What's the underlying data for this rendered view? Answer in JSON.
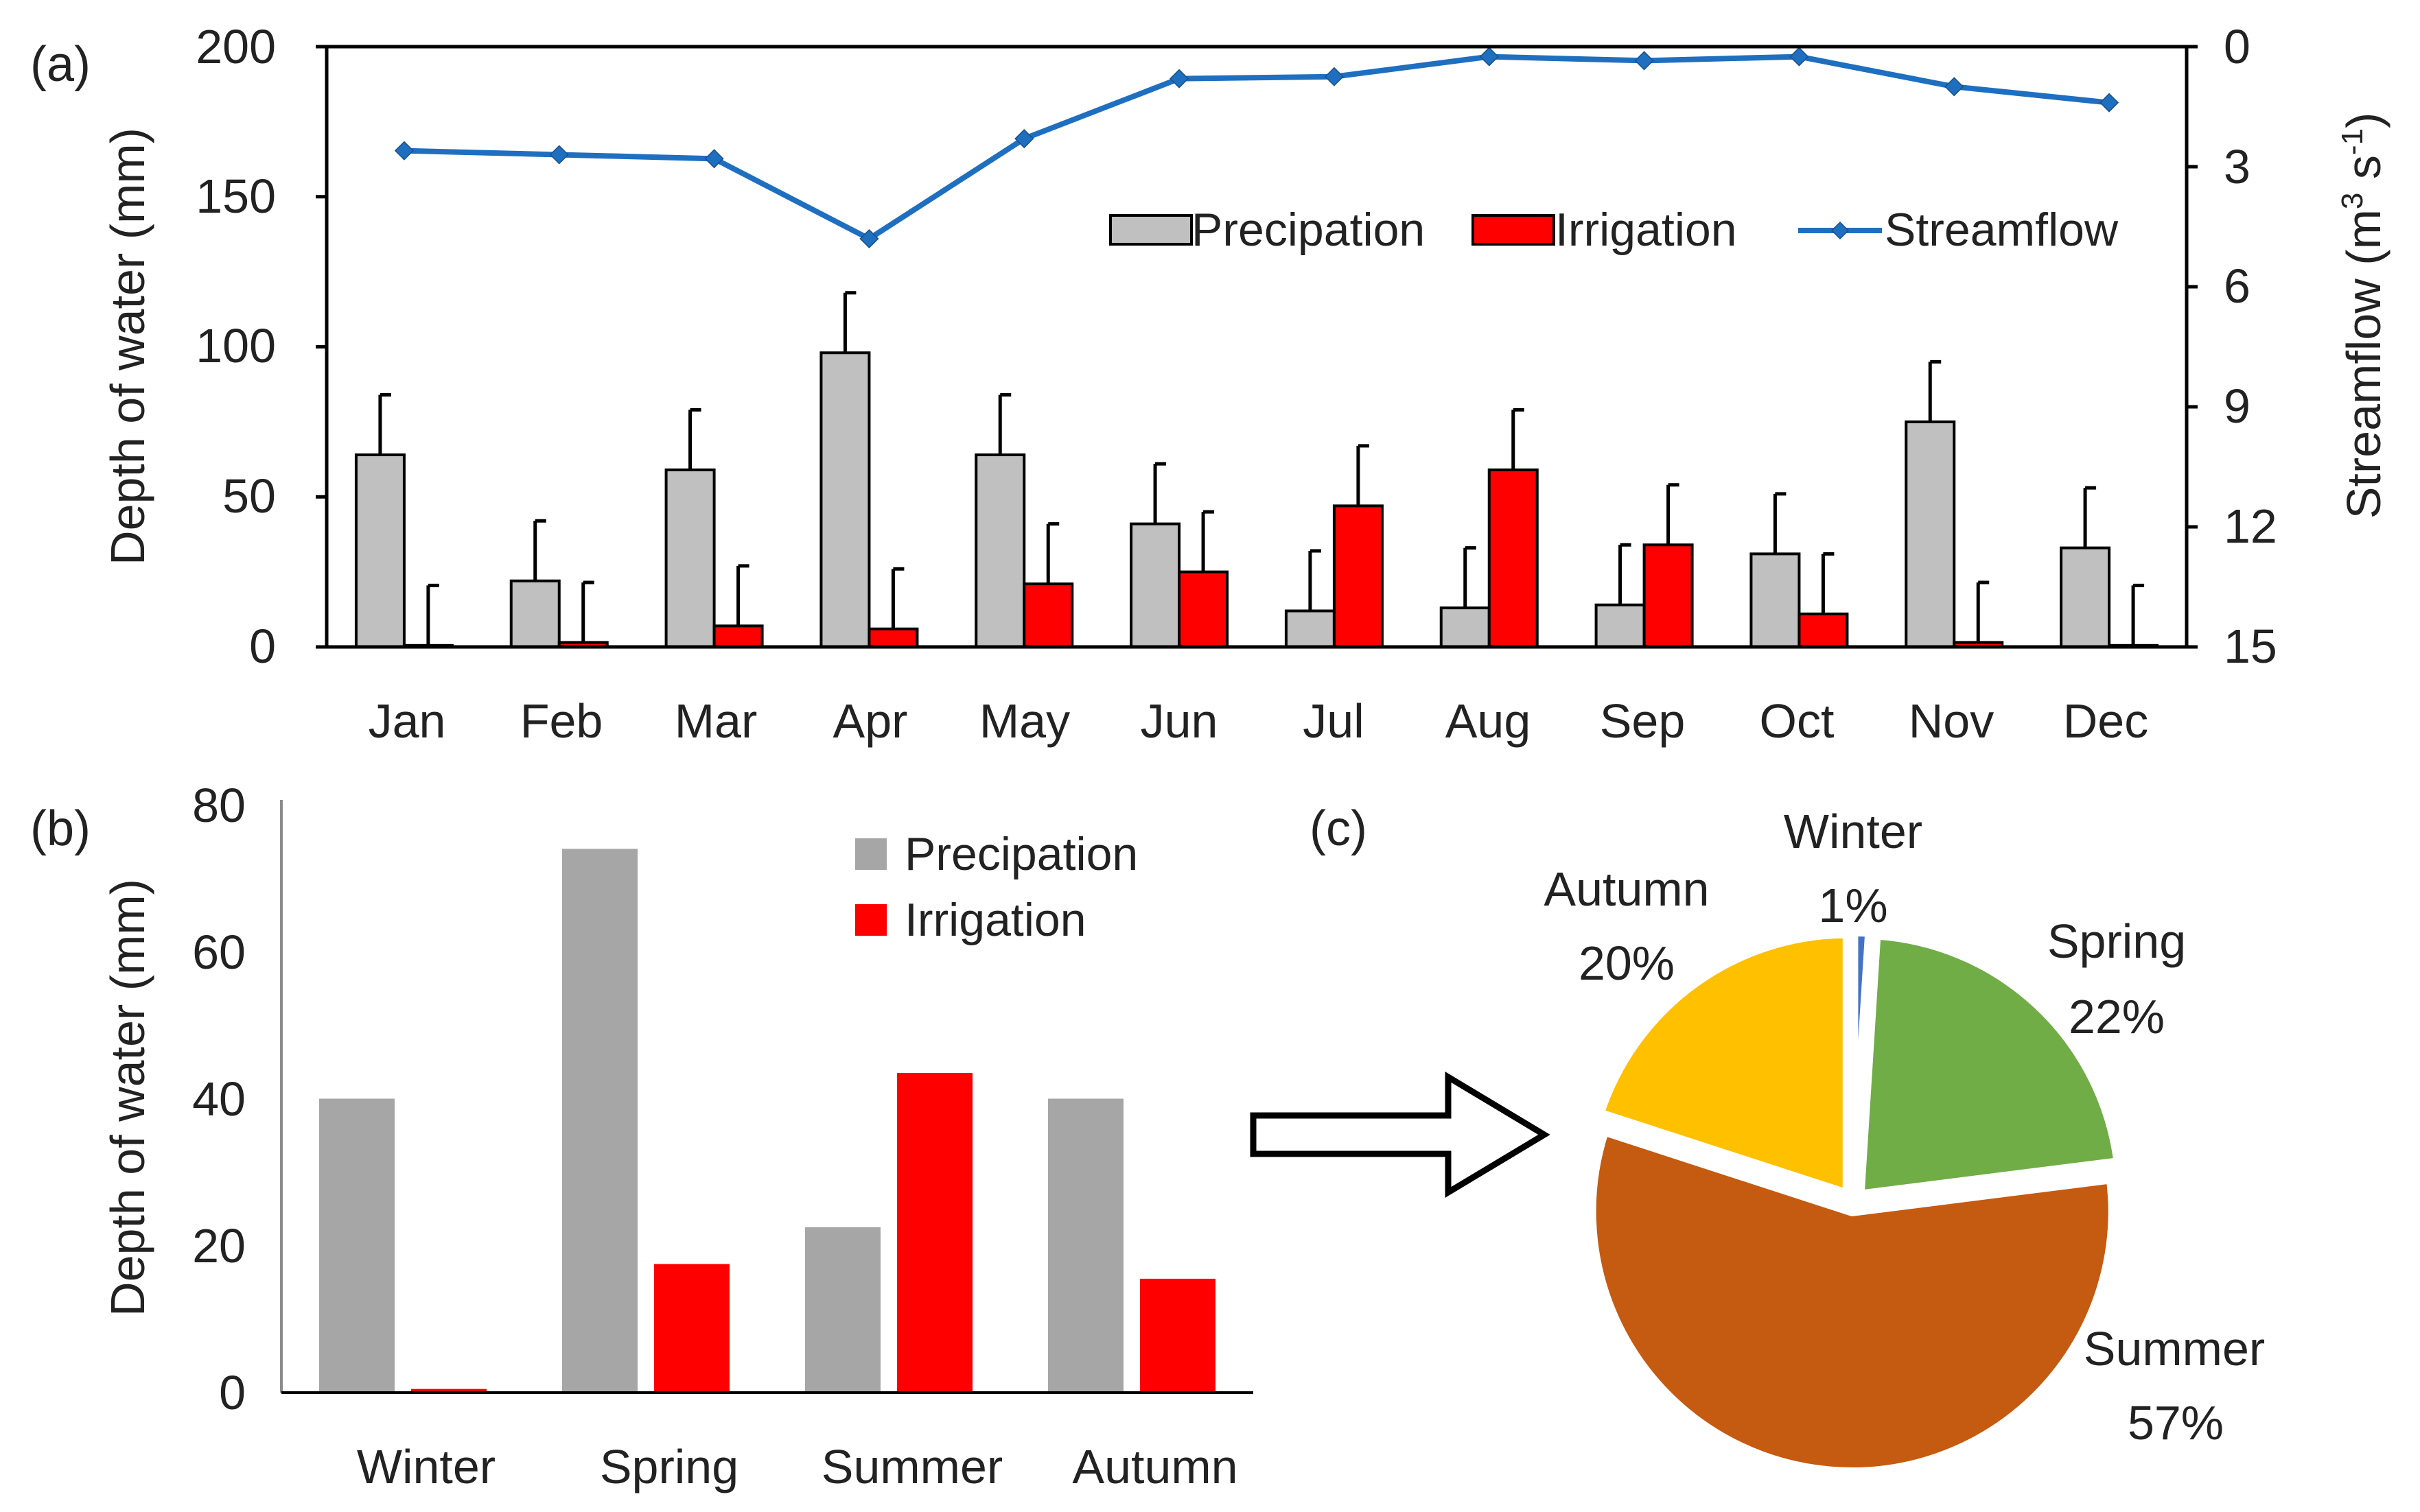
{
  "chart_data": [
    {
      "type": "bar+line",
      "panel_label": "(a)",
      "categories": [
        "Jan",
        "Feb",
        "Mar",
        "Apr",
        "May",
        "Jun",
        "Jul",
        "Aug",
        "Sep",
        "Oct",
        "Nov",
        "Dec"
      ],
      "series": [
        {
          "name": "Precipation",
          "kind": "bar",
          "color": "#c0c0c0",
          "values": [
            64,
            22,
            59,
            98,
            64,
            41,
            12,
            13,
            14,
            31,
            75,
            33
          ],
          "error": [
            20,
            20,
            20,
            20,
            20,
            20,
            20,
            20,
            20,
            20,
            20,
            20
          ]
        },
        {
          "name": "Irrigation",
          "kind": "bar",
          "color": "#ff0000",
          "values": [
            0.5,
            1.5,
            7,
            6,
            21,
            25,
            47,
            59,
            34,
            11,
            1.5,
            0.5
          ],
          "error": [
            20,
            20,
            20,
            20,
            20,
            20,
            20,
            20,
            20,
            20,
            20,
            20
          ]
        },
        {
          "name": "Streamflow",
          "kind": "line",
          "axis": "right",
          "color": "#1f6fc0",
          "values": [
            2.6,
            2.7,
            2.8,
            4.8,
            2.3,
            0.8,
            0.75,
            0.25,
            0.35,
            0.25,
            1.0,
            1.4
          ]
        }
      ],
      "ylabel": "Depth of water (mm)",
      "ylim": [
        0,
        200
      ],
      "yticks": [
        "0",
        "50",
        "100",
        "150",
        "200"
      ],
      "y2label": "Streamflow (m",
      "y2label_sup": "3",
      "y2label_mid": " s",
      "y2label_sup2": "-1",
      "y2label_end": ")",
      "y2lim": [
        0,
        15
      ],
      "y2_inverted": true,
      "y2ticks": [
        "0",
        "3",
        "6",
        "9",
        "12",
        "15"
      ],
      "legend_position": "top-right"
    },
    {
      "type": "bar",
      "panel_label": "(b)",
      "categories": [
        "Winter",
        "Spring",
        "Summer",
        "Autumn"
      ],
      "series": [
        {
          "name": "Precipation",
          "color": "#a6a6a6",
          "values": [
            40,
            74,
            22.5,
            40
          ]
        },
        {
          "name": "Irrigation",
          "color": "#ff0000",
          "values": [
            0.5,
            17.5,
            43.5,
            15.5
          ]
        }
      ],
      "ylabel": "Depth of water (mm)",
      "ylim": [
        0,
        80
      ],
      "yticks": [
        "0",
        "20",
        "40",
        "60",
        "80"
      ],
      "legend_position": "top-right"
    },
    {
      "type": "pie",
      "panel_label": "(c)",
      "slices": [
        {
          "label": "Winter",
          "pct_text": "1%",
          "value": 1,
          "color": "#4472c4"
        },
        {
          "label": "Spring",
          "pct_text": "22%",
          "value": 22,
          "color": "#70ad47"
        },
        {
          "label": "Summer",
          "pct_text": "57%",
          "value": 57,
          "color": "#c55a11"
        },
        {
          "label": "Autumn",
          "pct_text": "20%",
          "value": 20,
          "color": "#ffc000"
        }
      ]
    }
  ]
}
